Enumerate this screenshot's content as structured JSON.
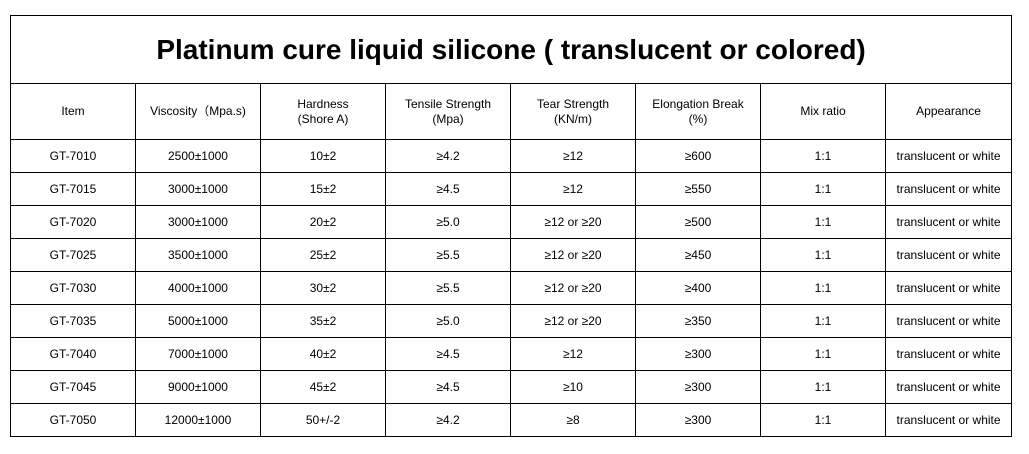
{
  "title": "Platinum cure liquid silicone ( translucent or colored)",
  "table": {
    "header": [
      "Item",
      "Viscosity（Mpa.s)",
      "Hardness\n(Shore A)",
      "Tensile Strength\n(Mpa)",
      "Tear Strength\n(KN/m)",
      "Elongation Break\n(%)",
      "Mix ratio",
      "Appearance"
    ],
    "rows": [
      [
        "GT-7010",
        "2500±1000",
        "10±2",
        "≥4.2",
        "≥12",
        "≥600",
        "1:1",
        "translucent or white"
      ],
      [
        "GT-7015",
        "3000±1000",
        "15±2",
        "≥4.5",
        "≥12",
        "≥550",
        "1:1",
        "translucent or white"
      ],
      [
        "GT-7020",
        "3000±1000",
        "20±2",
        "≥5.0",
        "≥12 or ≥20",
        "≥500",
        "1:1",
        "translucent or white"
      ],
      [
        "GT-7025",
        "3500±1000",
        "25±2",
        "≥5.5",
        "≥12 or ≥20",
        "≥450",
        "1:1",
        "translucent or white"
      ],
      [
        "GT-7030",
        "4000±1000",
        "30±2",
        "≥5.5",
        "≥12 or ≥20",
        "≥400",
        "1:1",
        "translucent or white"
      ],
      [
        "GT-7035",
        "5000±1000",
        "35±2",
        "≥5.0",
        "≥12 or ≥20",
        "≥350",
        "1:1",
        "translucent or white"
      ],
      [
        "GT-7040",
        "7000±1000",
        "40±2",
        "≥4.5",
        "≥12",
        "≥300",
        "1:1",
        "translucent or white"
      ],
      [
        "GT-7045",
        "9000±1000",
        "45±2",
        "≥4.5",
        "≥10",
        "≥300",
        "1:1",
        "translucent or white"
      ],
      [
        "GT-7050",
        "12000±1000",
        "50+/-2",
        "≥4.2",
        "≥8",
        "≥300",
        "1:1",
        "translucent or white"
      ]
    ]
  }
}
